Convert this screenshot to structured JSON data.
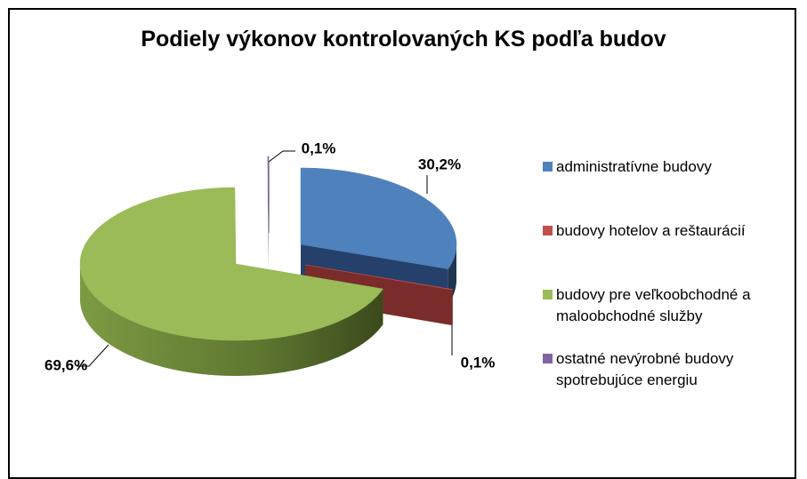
{
  "chart_data": {
    "type": "pie",
    "title": "Podiely výkonov kontrolovaných KS podľa budov",
    "categories": [
      "administratívne budovy",
      "budovy hotelov a reštaurácií",
      "budovy pre veľkoobchodné a maloobchodné služby",
      "ostatné nevýrobné budovy spotrebujúce energiu"
    ],
    "values": [
      30.2,
      0.1,
      69.6,
      0.1
    ],
    "value_labels": [
      "30,2%",
      "0,1%",
      "69,6%",
      "0,1%"
    ],
    "colors": [
      "#4f81bd",
      "#c0504d",
      "#9bbb59",
      "#8064a2"
    ],
    "legend": "right"
  }
}
